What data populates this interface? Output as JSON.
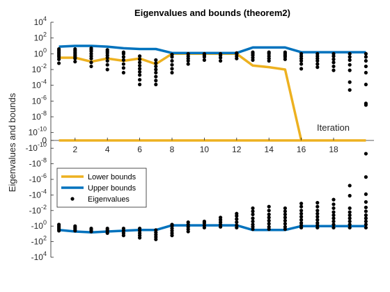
{
  "chart_data": {
    "type": "scatter",
    "title": "Eigenvalues and bounds (theorem2)",
    "ylabel": "Eigenvalues and bounds",
    "xlabel": "Iteration",
    "xlim": [
      0.5,
      20.5
    ],
    "x_ticks": [
      2,
      4,
      6,
      8,
      10,
      12,
      14,
      16,
      18
    ],
    "y_scale": "symlog",
    "y_ticks": [
      {
        "v": 4,
        "base": "10",
        "exp": "4"
      },
      {
        "v": 2,
        "base": "10",
        "exp": "2"
      },
      {
        "v": 0,
        "base": "10",
        "exp": "0"
      },
      {
        "v": -2,
        "base": "10",
        "exp": "-2"
      },
      {
        "v": -4,
        "base": "10",
        "exp": "-4"
      },
      {
        "v": -6,
        "base": "10",
        "exp": "-6"
      },
      {
        "v": -8,
        "base": "10",
        "exp": "-8"
      },
      {
        "v": -10,
        "base": "10",
        "exp": "-10"
      },
      {
        "v": "zero",
        "base": "0",
        "exp": ""
      },
      {
        "v": -10,
        "base": "-10",
        "exp": "-10",
        "neg": true
      },
      {
        "v": -8,
        "base": "-10",
        "exp": "-8",
        "neg": true
      },
      {
        "v": -6,
        "base": "-10",
        "exp": "-6",
        "neg": true
      },
      {
        "v": -4,
        "base": "-10",
        "exp": "-4",
        "neg": true
      },
      {
        "v": -2,
        "base": "-10",
        "exp": "-2",
        "neg": true
      },
      {
        "v": 0,
        "base": "-10",
        "exp": "0",
        "neg": true
      },
      {
        "v": 2,
        "base": "-10",
        "exp": "2",
        "neg": true
      },
      {
        "v": 4,
        "base": "-10",
        "exp": "4",
        "neg": true
      }
    ],
    "legend": {
      "placement": "middle-left",
      "entries": [
        "Lower bounds",
        "Upper bounds",
        "Eigenvalues"
      ]
    },
    "colors": {
      "lower": "#EDB120",
      "upper": "#0072BD",
      "eig": "#000000"
    },
    "series": [
      {
        "name": "Lower bounds",
        "sign": "pos",
        "x": [
          1,
          2,
          3,
          4,
          5,
          6,
          7,
          8,
          9,
          10,
          11,
          12,
          13,
          14,
          15,
          16
        ],
        "log10_abs": [
          -0.5,
          -0.5,
          -1.0,
          -0.6,
          -0.9,
          -0.6,
          -1.3,
          0.0,
          0.0,
          0.0,
          0.0,
          0.0,
          -1.5,
          -1.7,
          -2.0,
          null
        ]
      },
      {
        "name": "Lower bounds",
        "sign": "zero",
        "x": [
          1,
          20
        ],
        "log10_abs": [
          null,
          null
        ]
      },
      {
        "name": "Upper bounds",
        "sign": "pos",
        "x": [
          1,
          2,
          3,
          4,
          5,
          6,
          7,
          8,
          9,
          10,
          11,
          12,
          13,
          14,
          15,
          16,
          17,
          18,
          19,
          20
        ],
        "log10_abs": [
          0.9,
          1.0,
          1.0,
          0.9,
          0.7,
          0.6,
          0.6,
          0.1,
          0.1,
          0.1,
          0.1,
          0.1,
          0.8,
          0.8,
          0.8,
          0.2,
          0.2,
          0.2,
          0.2,
          0.2
        ]
      },
      {
        "name": "Upper bounds",
        "sign": "neg",
        "x": [
          1,
          2,
          3,
          4,
          5,
          6,
          7,
          8,
          9,
          10,
          11,
          12,
          13,
          14,
          15,
          16,
          17,
          18,
          19,
          20
        ],
        "log10_abs": [
          0.5,
          0.7,
          0.8,
          0.7,
          0.6,
          0.5,
          0.5,
          -0.1,
          -0.1,
          -0.1,
          -0.1,
          -0.1,
          0.5,
          0.5,
          0.5,
          0.0,
          0.0,
          0.0,
          0.0,
          0.0
        ]
      }
    ],
    "eigenvalues": {
      "name": "Eigenvalues",
      "pos": [
        {
          "x": 1,
          "log10_abs": [
            -1.2,
            -0.7,
            -0.4,
            -0.2,
            0.0,
            0.2,
            0.4,
            0.6
          ]
        },
        {
          "x": 2,
          "log10_abs": [
            -1.0,
            -0.6,
            -0.4,
            -0.2,
            0.0,
            0.2,
            0.4,
            0.6
          ]
        },
        {
          "x": 3,
          "log10_abs": [
            -1.6,
            -1.1,
            -0.6,
            -0.3,
            0.0,
            0.3,
            0.5,
            0.7
          ]
        },
        {
          "x": 4,
          "log10_abs": [
            -2.0,
            -1.4,
            -0.9,
            -0.5,
            -0.2,
            0.1,
            0.3,
            0.5
          ]
        },
        {
          "x": 5,
          "log10_abs": [
            -2.4,
            -1.8,
            -1.3,
            -0.8,
            -0.4,
            0.0,
            0.2
          ]
        },
        {
          "x": 6,
          "log10_abs": [
            -3.9,
            -3.3,
            -2.7,
            -2.3,
            -1.9,
            -1.5,
            -1.1,
            -0.7,
            -0.3
          ]
        },
        {
          "x": 7,
          "log10_abs": [
            -3.9,
            -3.4,
            -2.9,
            -2.4,
            -2.0,
            -1.6,
            -1.2,
            -0.8
          ]
        },
        {
          "x": 8,
          "log10_abs": [
            -2.4,
            -1.9,
            -1.4,
            -0.9,
            -0.4,
            -0.1
          ]
        },
        {
          "x": 9,
          "log10_abs": [
            -1.3,
            -0.9,
            -0.6,
            -0.3,
            0.0
          ]
        },
        {
          "x": 10,
          "log10_abs": [
            -0.8,
            -0.4,
            -0.2,
            0.0
          ]
        },
        {
          "x": 11,
          "log10_abs": [
            -0.9,
            -0.5,
            -0.2,
            0.0
          ]
        },
        {
          "x": 12,
          "log10_abs": [
            -0.6,
            -0.3,
            0.0,
            0.1
          ]
        },
        {
          "x": 13,
          "log10_abs": [
            -0.8,
            -0.5,
            -0.2,
            0.0,
            0.2
          ]
        },
        {
          "x": 14,
          "log10_abs": [
            -0.9,
            -0.6,
            -0.3,
            0.0,
            0.2
          ]
        },
        {
          "x": 15,
          "log10_abs": [
            -0.7,
            -0.4,
            -0.2,
            0.0,
            0.2
          ]
        },
        {
          "x": 16,
          "log10_abs": [
            -1.9,
            -1.3,
            -0.9,
            -0.6,
            -0.3,
            0.0
          ]
        },
        {
          "x": 17,
          "log10_abs": [
            -1.7,
            -1.3,
            -0.9,
            -0.6,
            -0.3,
            0.0
          ]
        },
        {
          "x": 18,
          "log10_abs": [
            -2.1,
            -1.6,
            -1.1,
            -0.7,
            -0.3,
            0.0
          ]
        },
        {
          "x": 19,
          "log10_abs": [
            -4.6,
            -3.6,
            -2.1,
            -1.4,
            -0.8,
            -0.4,
            0.0
          ]
        },
        {
          "x": 20,
          "log10_abs": [
            -6.5,
            -6.3,
            -3.9,
            -2.4,
            -1.6,
            -0.9,
            -0.4,
            0.0
          ]
        }
      ],
      "neg": [
        {
          "x": 1,
          "log10_abs": [
            0.6,
            0.4,
            0.2,
            0.0,
            -0.2
          ]
        },
        {
          "x": 2,
          "log10_abs": [
            0.6,
            0.4,
            0.2,
            0.0
          ]
        },
        {
          "x": 3,
          "log10_abs": [
            0.7,
            0.5,
            0.3
          ]
        },
        {
          "x": 4,
          "log10_abs": [
            0.9,
            0.7,
            0.5,
            0.3
          ]
        },
        {
          "x": 5,
          "log10_abs": [
            1.2,
            0.9,
            0.6,
            0.3
          ]
        },
        {
          "x": 6,
          "log10_abs": [
            1.5,
            1.2,
            0.9,
            0.6,
            0.3
          ]
        },
        {
          "x": 7,
          "log10_abs": [
            1.7,
            1.4,
            1.1,
            0.8,
            0.5
          ]
        },
        {
          "x": 8,
          "log10_abs": [
            1.2,
            0.9,
            0.6,
            0.3,
            0.0,
            -0.2
          ]
        },
        {
          "x": 9,
          "log10_abs": [
            0.7,
            0.4,
            0.1,
            -0.2,
            -0.5
          ]
        },
        {
          "x": 10,
          "log10_abs": [
            0.2,
            -0.1,
            -0.4,
            -0.6
          ]
        },
        {
          "x": 11,
          "log10_abs": [
            0.1,
            -0.2,
            -0.5,
            -0.8,
            -1.1
          ]
        },
        {
          "x": 12,
          "log10_abs": [
            0.2,
            -0.1,
            -0.5,
            -0.9,
            -1.3,
            -1.6
          ]
        },
        {
          "x": 13,
          "log10_abs": [
            0.4,
            0.1,
            -0.2,
            -0.6,
            -1.0,
            -1.5,
            -1.9,
            -2.3
          ]
        },
        {
          "x": 14,
          "log10_abs": [
            0.4,
            0.1,
            -0.3,
            -0.7,
            -1.1,
            -1.5,
            -2.0,
            -2.5
          ]
        },
        {
          "x": 15,
          "log10_abs": [
            0.4,
            0.1,
            -0.3,
            -0.7,
            -1.1,
            -1.5,
            -1.9,
            -2.3
          ]
        },
        {
          "x": 16,
          "log10_abs": [
            0.2,
            -0.1,
            -0.4,
            -0.8,
            -1.2,
            -1.6,
            -2.0,
            -2.5,
            -2.9
          ]
        },
        {
          "x": 17,
          "log10_abs": [
            0.2,
            -0.1,
            -0.4,
            -0.8,
            -1.2,
            -1.6,
            -2.0,
            -2.5,
            -3.0
          ]
        },
        {
          "x": 18,
          "log10_abs": [
            0.2,
            -0.2,
            -0.6,
            -1.0,
            -1.4,
            -1.8,
            -2.3,
            -2.8,
            -3.4
          ]
        },
        {
          "x": 19,
          "log10_abs": [
            0.2,
            -0.2,
            -0.6,
            -1.0,
            -1.4,
            -1.8,
            -2.3,
            -3.9,
            -5.2
          ]
        },
        {
          "x": 20,
          "log10_abs": [
            0.2,
            -0.2,
            -0.6,
            -1.0,
            -1.4,
            -1.9,
            -2.4,
            -3.1,
            -4.1,
            -6.3,
            -9.3
          ]
        }
      ]
    }
  }
}
